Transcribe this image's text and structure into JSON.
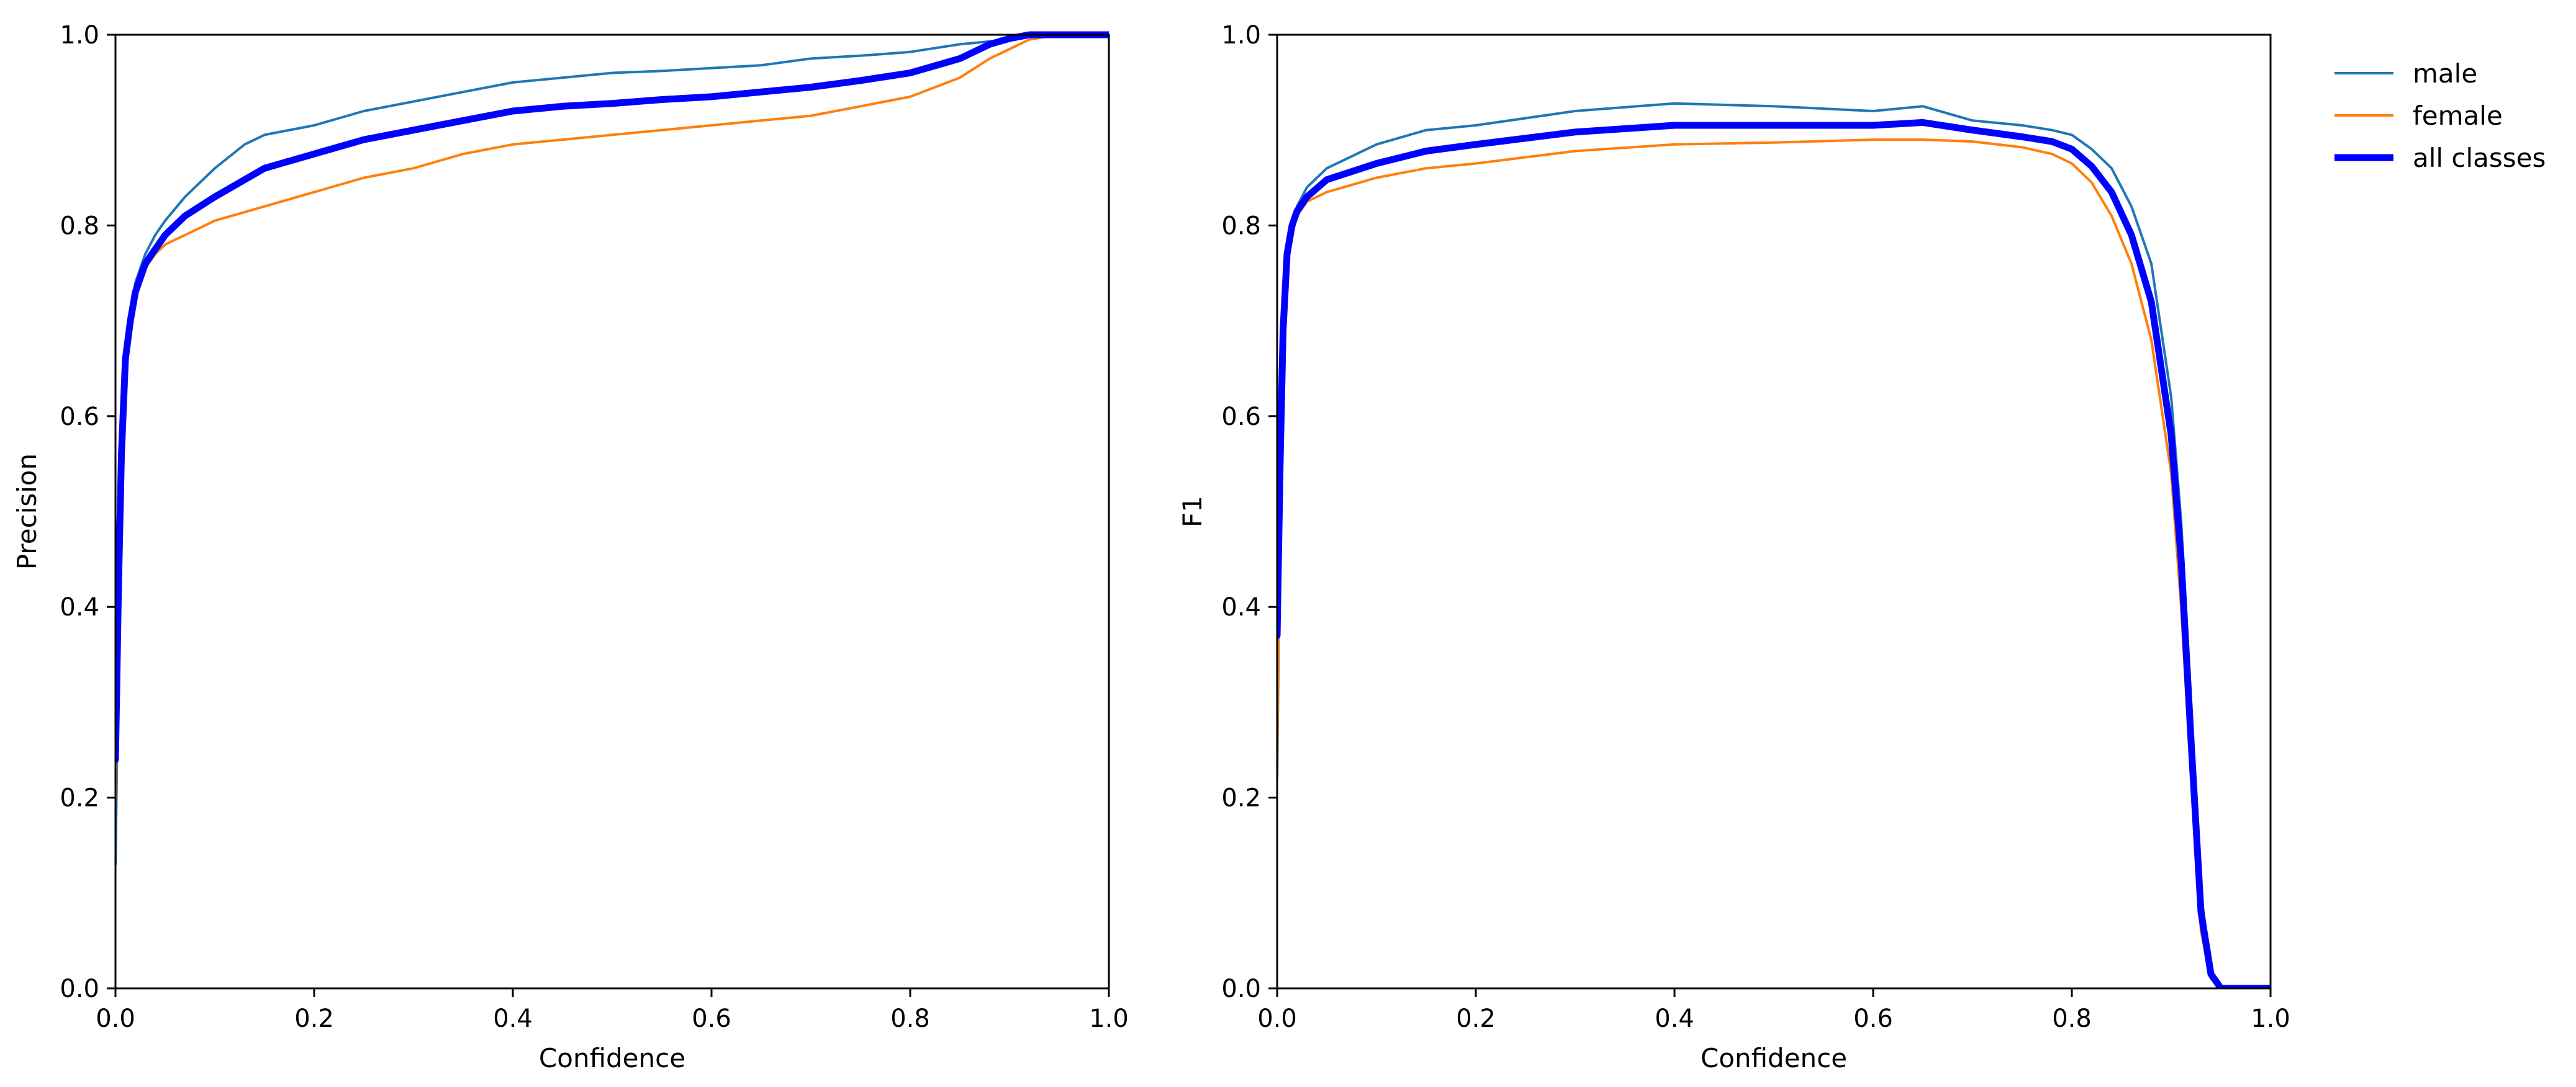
{
  "chart_data": [
    {
      "type": "line",
      "xlabel": "Confidence",
      "ylabel": "Precision",
      "xlim": [
        0,
        1
      ],
      "ylim": [
        0,
        1
      ],
      "xticks": [
        "0.0",
        "0.2",
        "0.4",
        "0.6",
        "0.8",
        "1.0"
      ],
      "yticks": [
        "0.0",
        "0.2",
        "0.4",
        "0.6",
        "0.8",
        "1.0"
      ],
      "grid": false,
      "series": [
        {
          "name": "male",
          "color": "#1f77b4",
          "line": "thin",
          "x": [
            0,
            0.003,
            0.006,
            0.01,
            0.015,
            0.02,
            0.03,
            0.04,
            0.05,
            0.07,
            0.1,
            0.13,
            0.15,
            0.2,
            0.25,
            0.3,
            0.35,
            0.4,
            0.45,
            0.5,
            0.55,
            0.6,
            0.65,
            0.7,
            0.75,
            0.8,
            0.85,
            0.9,
            0.92,
            0.95,
            1.0
          ],
          "y": [
            0.13,
            0.35,
            0.55,
            0.66,
            0.71,
            0.74,
            0.77,
            0.79,
            0.805,
            0.83,
            0.86,
            0.885,
            0.895,
            0.905,
            0.92,
            0.93,
            0.94,
            0.95,
            0.955,
            0.96,
            0.962,
            0.965,
            0.968,
            0.975,
            0.978,
            0.982,
            0.99,
            0.995,
            1.0,
            1.0,
            1.0
          ]
        },
        {
          "name": "female",
          "color": "#ff7f0e",
          "line": "thin",
          "x": [
            0,
            0.003,
            0.006,
            0.01,
            0.015,
            0.02,
            0.03,
            0.04,
            0.05,
            0.07,
            0.1,
            0.15,
            0.2,
            0.25,
            0.3,
            0.35,
            0.4,
            0.45,
            0.5,
            0.55,
            0.6,
            0.65,
            0.7,
            0.75,
            0.8,
            0.85,
            0.88,
            0.9,
            0.92,
            0.95,
            1.0
          ],
          "y": [
            0.2,
            0.4,
            0.56,
            0.65,
            0.7,
            0.73,
            0.755,
            0.77,
            0.78,
            0.79,
            0.805,
            0.82,
            0.835,
            0.85,
            0.86,
            0.875,
            0.885,
            0.89,
            0.895,
            0.9,
            0.905,
            0.91,
            0.915,
            0.925,
            0.935,
            0.955,
            0.975,
            0.985,
            0.995,
            1.0,
            1.0
          ]
        },
        {
          "name": "all classes",
          "color": "#0000ff",
          "line": "thick",
          "x": [
            0,
            0.003,
            0.006,
            0.01,
            0.015,
            0.02,
            0.03,
            0.04,
            0.05,
            0.07,
            0.1,
            0.15,
            0.2,
            0.25,
            0.3,
            0.35,
            0.4,
            0.45,
            0.5,
            0.55,
            0.6,
            0.65,
            0.7,
            0.75,
            0.8,
            0.85,
            0.88,
            0.9,
            0.92,
            0.95,
            1.0
          ],
          "y": [
            0.24,
            0.42,
            0.56,
            0.66,
            0.7,
            0.73,
            0.76,
            0.775,
            0.79,
            0.81,
            0.83,
            0.86,
            0.875,
            0.89,
            0.9,
            0.91,
            0.92,
            0.925,
            0.928,
            0.932,
            0.935,
            0.94,
            0.945,
            0.952,
            0.96,
            0.975,
            0.99,
            0.996,
            1.0,
            1.0,
            1.0
          ]
        }
      ]
    },
    {
      "type": "line",
      "xlabel": "Confidence",
      "ylabel": "F1",
      "xlim": [
        0,
        1
      ],
      "ylim": [
        0,
        1
      ],
      "xticks": [
        "0.0",
        "0.2",
        "0.4",
        "0.6",
        "0.8",
        "1.0"
      ],
      "yticks": [
        "0.0",
        "0.2",
        "0.4",
        "0.6",
        "0.8",
        "1.0"
      ],
      "grid": false,
      "legend": "outside-upper-right",
      "series": [
        {
          "name": "male",
          "color": "#1f77b4",
          "line": "thin",
          "x": [
            0,
            0.003,
            0.006,
            0.01,
            0.015,
            0.02,
            0.03,
            0.05,
            0.1,
            0.15,
            0.2,
            0.3,
            0.4,
            0.5,
            0.6,
            0.65,
            0.7,
            0.75,
            0.78,
            0.8,
            0.82,
            0.84,
            0.86,
            0.88,
            0.9,
            0.91,
            0.92,
            0.93,
            0.94,
            0.95,
            1.0
          ],
          "y": [
            0.22,
            0.5,
            0.68,
            0.77,
            0.8,
            0.82,
            0.84,
            0.86,
            0.885,
            0.9,
            0.905,
            0.92,
            0.928,
            0.925,
            0.92,
            0.925,
            0.91,
            0.905,
            0.9,
            0.895,
            0.88,
            0.86,
            0.82,
            0.76,
            0.62,
            0.49,
            0.3,
            0.1,
            0.02,
            0.0,
            0.0
          ]
        },
        {
          "name": "female",
          "color": "#ff7f0e",
          "line": "thin",
          "x": [
            0,
            0.003,
            0.006,
            0.01,
            0.015,
            0.02,
            0.03,
            0.05,
            0.1,
            0.15,
            0.2,
            0.3,
            0.4,
            0.5,
            0.6,
            0.65,
            0.7,
            0.75,
            0.78,
            0.8,
            0.82,
            0.84,
            0.86,
            0.88,
            0.9,
            0.91,
            0.92,
            0.93,
            0.94,
            0.95,
            1.0
          ],
          "y": [
            0.24,
            0.52,
            0.68,
            0.76,
            0.79,
            0.81,
            0.825,
            0.835,
            0.85,
            0.86,
            0.865,
            0.878,
            0.885,
            0.887,
            0.89,
            0.89,
            0.888,
            0.882,
            0.875,
            0.865,
            0.845,
            0.81,
            0.76,
            0.68,
            0.54,
            0.4,
            0.22,
            0.06,
            0.01,
            0.0,
            0.0
          ]
        },
        {
          "name": "all classes",
          "color": "#0000ff",
          "line": "thick",
          "x": [
            0,
            0.003,
            0.006,
            0.01,
            0.015,
            0.02,
            0.03,
            0.05,
            0.1,
            0.15,
            0.2,
            0.3,
            0.4,
            0.5,
            0.6,
            0.65,
            0.7,
            0.75,
            0.78,
            0.8,
            0.82,
            0.84,
            0.86,
            0.88,
            0.9,
            0.91,
            0.92,
            0.93,
            0.94,
            0.95,
            1.0
          ],
          "y": [
            0.37,
            0.55,
            0.69,
            0.77,
            0.8,
            0.815,
            0.83,
            0.848,
            0.865,
            0.878,
            0.885,
            0.898,
            0.905,
            0.905,
            0.905,
            0.908,
            0.9,
            0.893,
            0.888,
            0.88,
            0.862,
            0.835,
            0.79,
            0.72,
            0.58,
            0.45,
            0.26,
            0.08,
            0.015,
            0.0,
            0.0
          ]
        }
      ]
    }
  ]
}
